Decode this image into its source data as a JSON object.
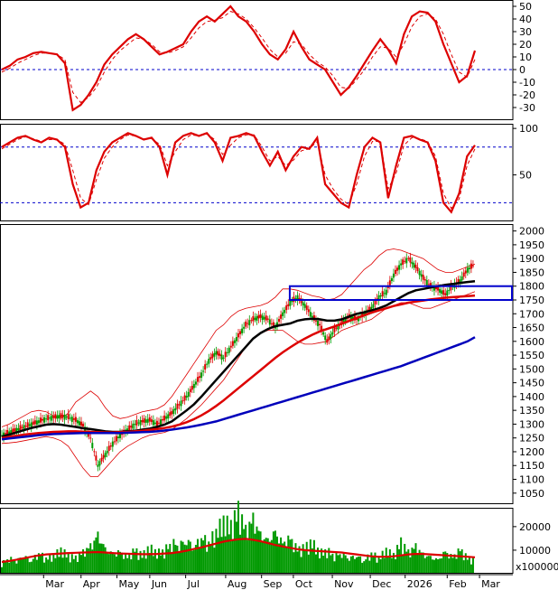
{
  "chart_data": [
    {
      "type": "line",
      "panel": "oscillator",
      "ylim": [
        -40,
        55
      ],
      "yticks": [
        "50",
        "40",
        "30",
        "20",
        "10",
        "0",
        "-10",
        "-20",
        "-30"
      ],
      "ytick_values": [
        50,
        40,
        30,
        20,
        10,
        0,
        -10,
        -20,
        -30
      ],
      "reference_lines": [
        0
      ],
      "series": [
        {
          "color": "#dd0000",
          "style": "solid",
          "values": [
            0,
            3,
            8,
            10,
            13,
            14,
            13,
            12,
            5,
            -32,
            -28,
            -20,
            -10,
            4,
            12,
            18,
            24,
            28,
            24,
            18,
            12,
            14,
            17,
            20,
            30,
            38,
            42,
            38,
            44,
            50,
            42,
            38,
            30,
            20,
            12,
            8,
            16,
            30,
            18,
            8,
            4,
            0,
            -10,
            -20,
            -14,
            -5,
            5,
            15,
            24,
            16,
            5,
            28,
            42,
            46,
            45,
            38,
            20,
            5,
            -10,
            -5,
            15
          ]
        },
        {
          "color": "#dd0000",
          "style": "dashed",
          "values": [
            -2,
            1,
            5,
            8,
            11,
            13,
            13,
            12,
            8,
            -18,
            -26,
            -22,
            -14,
            -2,
            8,
            15,
            20,
            25,
            24,
            20,
            14,
            13,
            15,
            18,
            25,
            33,
            38,
            39,
            41,
            46,
            44,
            40,
            33,
            25,
            16,
            10,
            13,
            22,
            20,
            12,
            6,
            2,
            -5,
            -14,
            -15,
            -8,
            0,
            10,
            18,
            17,
            10,
            20,
            34,
            42,
            44,
            40,
            28,
            12,
            -2,
            -6,
            8
          ]
        }
      ]
    },
    {
      "type": "line",
      "panel": "stochastic",
      "ylim": [
        0,
        105
      ],
      "yticks": [
        "100",
        "50"
      ],
      "ytick_values": [
        100,
        50
      ],
      "reference_lines": [
        80,
        20
      ],
      "series": [
        {
          "color": "#dd0000",
          "style": "solid",
          "values": [
            80,
            85,
            90,
            92,
            88,
            85,
            90,
            88,
            80,
            40,
            15,
            20,
            55,
            75,
            85,
            90,
            95,
            92,
            88,
            90,
            80,
            50,
            85,
            92,
            95,
            92,
            95,
            85,
            65,
            90,
            92,
            95,
            92,
            75,
            60,
            75,
            55,
            70,
            80,
            78,
            90,
            40,
            30,
            20,
            15,
            50,
            80,
            90,
            85,
            25,
            60,
            90,
            92,
            88,
            85,
            65,
            20,
            10,
            30,
            70,
            82
          ]
        },
        {
          "color": "#dd0000",
          "style": "dashed",
          "values": [
            78,
            83,
            88,
            91,
            89,
            86,
            88,
            88,
            83,
            55,
            25,
            18,
            45,
            68,
            80,
            88,
            93,
            92,
            89,
            89,
            83,
            60,
            75,
            88,
            93,
            92,
            94,
            88,
            72,
            82,
            90,
            93,
            93,
            80,
            65,
            70,
            60,
            66,
            76,
            78,
            86,
            50,
            35,
            24,
            18,
            40,
            70,
            86,
            86,
            35,
            52,
            82,
            90,
            89,
            86,
            70,
            30,
            14,
            24,
            60,
            78
          ]
        }
      ]
    },
    {
      "type": "candlestick",
      "panel": "price",
      "ylim": [
        1010,
        2025
      ],
      "yticks": [
        "2000",
        "1950",
        "1900",
        "1850",
        "1800",
        "1750",
        "1700",
        "1650",
        "1600",
        "1550",
        "1500",
        "1450",
        "1400",
        "1350",
        "1300",
        "1250",
        "1200",
        "1150",
        "1100",
        "1050"
      ],
      "ytick_values": [
        2000,
        1950,
        1900,
        1850,
        1800,
        1750,
        1700,
        1650,
        1600,
        1550,
        1500,
        1450,
        1400,
        1350,
        1300,
        1250,
        1200,
        1150,
        1100,
        1050
      ],
      "close": [
        1260,
        1270,
        1280,
        1290,
        1300,
        1310,
        1320,
        1325,
        1330,
        1325,
        1315,
        1295,
        1250,
        1150,
        1190,
        1230,
        1260,
        1280,
        1300,
        1310,
        1315,
        1300,
        1320,
        1340,
        1370,
        1400,
        1440,
        1480,
        1530,
        1560,
        1540,
        1580,
        1620,
        1660,
        1680,
        1690,
        1680,
        1650,
        1700,
        1740,
        1760,
        1730,
        1690,
        1660,
        1600,
        1640,
        1670,
        1690,
        1680,
        1700,
        1720,
        1760,
        1780,
        1840,
        1880,
        1900,
        1870,
        1830,
        1800,
        1790,
        1770,
        1800,
        1820,
        1860,
        1880
      ],
      "ma_series": [
        {
          "name": "",
          "color": "#000000",
          "values": [
            1255,
            1262,
            1270,
            1278,
            1286,
            1292,
            1298,
            1300,
            1298,
            1294,
            1290,
            1285,
            1282,
            1278,
            1274,
            1272,
            1272,
            1274,
            1276,
            1280,
            1284,
            1290,
            1298,
            1310,
            1330,
            1350,
            1372,
            1400,
            1430,
            1460,
            1490,
            1520,
            1550,
            1580,
            1610,
            1630,
            1645,
            1655,
            1660,
            1665,
            1675,
            1680,
            1682,
            1680,
            1675,
            1675,
            1680,
            1690,
            1700,
            1705,
            1712,
            1720,
            1730,
            1745,
            1760,
            1775,
            1785,
            1790,
            1795,
            1800,
            1805,
            1808,
            1812,
            1815,
            1818
          ]
        },
        {
          "name": "",
          "color": "#dd0000",
          "values": [
            1250,
            1254,
            1258,
            1262,
            1265,
            1268,
            1270,
            1272,
            1273,
            1274,
            1274,
            1273,
            1272,
            1271,
            1270,
            1270,
            1271,
            1272,
            1274,
            1276,
            1279,
            1282,
            1286,
            1291,
            1298,
            1307,
            1318,
            1332,
            1348,
            1366,
            1386,
            1408,
            1430,
            1452,
            1474,
            1496,
            1518,
            1540,
            1560,
            1578,
            1595,
            1610,
            1624,
            1636,
            1645,
            1654,
            1664,
            1674,
            1684,
            1694,
            1704,
            1712,
            1720,
            1728,
            1734,
            1740,
            1744,
            1748,
            1752,
            1755,
            1758,
            1760,
            1762,
            1764,
            1766
          ]
        },
        {
          "name": "",
          "color": "#0000bb",
          "values": [
            1245,
            1248,
            1251,
            1254,
            1257,
            1260,
            1262,
            1264,
            1265,
            1266,
            1267,
            1268,
            1268,
            1268,
            1268,
            1268,
            1268,
            1269,
            1270,
            1271,
            1272,
            1274,
            1277,
            1280,
            1284,
            1288,
            1293,
            1298,
            1304,
            1310,
            1318,
            1326,
            1334,
            1342,
            1350,
            1358,
            1366,
            1374,
            1382,
            1390,
            1398,
            1406,
            1414,
            1422,
            1430,
            1438,
            1446,
            1454,
            1462,
            1470,
            1478,
            1486,
            1494,
            1502,
            1510,
            1520,
            1530,
            1540,
            1550,
            1560,
            1570,
            1580,
            1590,
            1600,
            1615
          ]
        }
      ],
      "bollinger": {
        "color": "#dd0000",
        "upper": [
          1290,
          1300,
          1315,
          1330,
          1345,
          1350,
          1345,
          1330,
          1320,
          1340,
          1380,
          1400,
          1420,
          1400,
          1360,
          1330,
          1320,
          1325,
          1335,
          1345,
          1350,
          1355,
          1370,
          1400,
          1440,
          1480,
          1520,
          1560,
          1600,
          1640,
          1660,
          1690,
          1710,
          1720,
          1725,
          1730,
          1740,
          1760,
          1790,
          1790,
          1785,
          1775,
          1765,
          1760,
          1750,
          1755,
          1770,
          1800,
          1830,
          1860,
          1880,
          1910,
          1930,
          1935,
          1930,
          1920,
          1910,
          1900,
          1880,
          1860,
          1850,
          1850,
          1860,
          1870,
          1880
        ],
        "lower": [
          1230,
          1232,
          1235,
          1240,
          1245,
          1250,
          1255,
          1250,
          1240,
          1220,
          1180,
          1140,
          1110,
          1110,
          1140,
          1170,
          1200,
          1220,
          1235,
          1250,
          1260,
          1265,
          1270,
          1280,
          1300,
          1320,
          1345,
          1370,
          1400,
          1430,
          1460,
          1500,
          1540,
          1580,
          1610,
          1630,
          1640,
          1640,
          1640,
          1620,
          1600,
          1590,
          1590,
          1595,
          1600,
          1620,
          1640,
          1650,
          1660,
          1670,
          1680,
          1700,
          1720,
          1730,
          1740,
          1740,
          1730,
          1720,
          1720,
          1730,
          1740,
          1750,
          1760,
          1770,
          1780
        ]
      },
      "resistance_zone": [
        1750,
        1800
      ]
    },
    {
      "type": "bar",
      "panel": "volume",
      "ylim": [
        0,
        28000
      ],
      "yticks": [
        "20000",
        "10000"
      ],
      "ytick_values": [
        20000,
        10000
      ],
      "unit_label": "x100000",
      "values": [
        4000,
        6000,
        5000,
        7000,
        5000,
        8000,
        6000,
        7000,
        9000,
        7000,
        6000,
        8000,
        10000,
        14000,
        9000,
        7000,
        8000,
        6000,
        9000,
        7000,
        10000,
        8000,
        9000,
        12000,
        11000,
        13000,
        10000,
        14000,
        12000,
        16000,
        20000,
        18000,
        24000,
        16000,
        20000,
        14000,
        12000,
        15000,
        11000,
        13000,
        9000,
        10000,
        12000,
        8000,
        9000,
        7000,
        8000,
        6000,
        7000,
        5000,
        8000,
        6000,
        9000,
        7000,
        12000,
        8000,
        10000,
        7000,
        6000,
        5000,
        8000,
        6000,
        9000,
        6000,
        5000
      ],
      "ma_values": [
        5000,
        5400,
        6000,
        6600,
        7200,
        7800,
        8200,
        8400,
        8600,
        8800,
        8900,
        9000,
        9100,
        9200,
        9000,
        8800,
        8600,
        8500,
        8400,
        8300,
        8300,
        8400,
        8600,
        8800,
        9200,
        9800,
        10500,
        11200,
        12000,
        12800,
        13600,
        14200,
        14600,
        14800,
        14400,
        13800,
        13000,
        12200,
        11600,
        11000,
        10400,
        10000,
        9800,
        9600,
        9400,
        9200,
        9000,
        8600,
        8200,
        7800,
        7400,
        7200,
        7200,
        7400,
        7800,
        8200,
        8400,
        8400,
        8200,
        8000,
        7800,
        7600,
        7400,
        7200,
        7000
      ]
    }
  ],
  "x_axis": {
    "month_labels": [
      "Mar",
      "Apr",
      "May",
      "Jun",
      "Jul",
      "Aug",
      "Sep",
      "Oct",
      "Nov",
      "Dec",
      "2026",
      "Feb",
      "Mar"
    ],
    "month_fracs": [
      0.085,
      0.158,
      0.228,
      0.292,
      0.362,
      0.44,
      0.51,
      0.572,
      0.648,
      0.722,
      0.79,
      0.872,
      0.935
    ]
  }
}
